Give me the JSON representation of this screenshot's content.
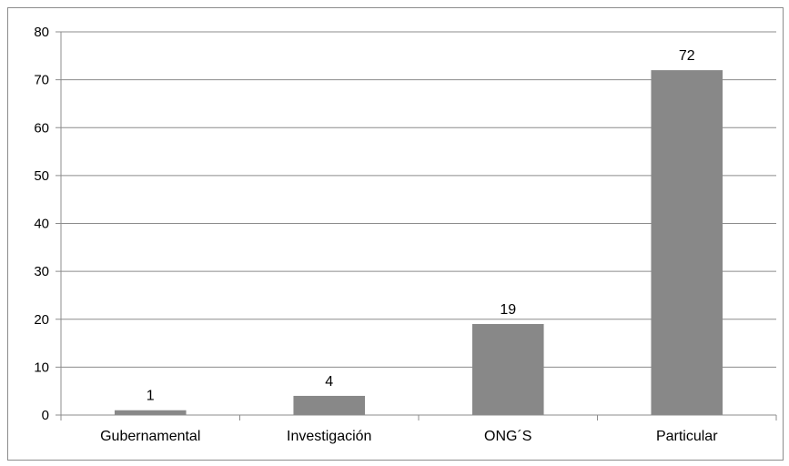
{
  "chart_data": {
    "type": "bar",
    "title": "",
    "xlabel": "",
    "ylabel": "",
    "categories": [
      "Gubernamental",
      "Investigación",
      "ONG´S",
      "Particular"
    ],
    "values": [
      1,
      4,
      19,
      72
    ],
    "data_labels": [
      "1",
      "4",
      "19",
      "72"
    ],
    "ylim": [
      0,
      80
    ],
    "yticks": [
      0,
      10,
      20,
      30,
      40,
      50,
      60,
      70,
      80
    ],
    "grid": true,
    "legend": "none",
    "colors": {
      "bar": "#888888",
      "grid": "#8c8c8c",
      "axis": "#8c8c8c"
    }
  }
}
